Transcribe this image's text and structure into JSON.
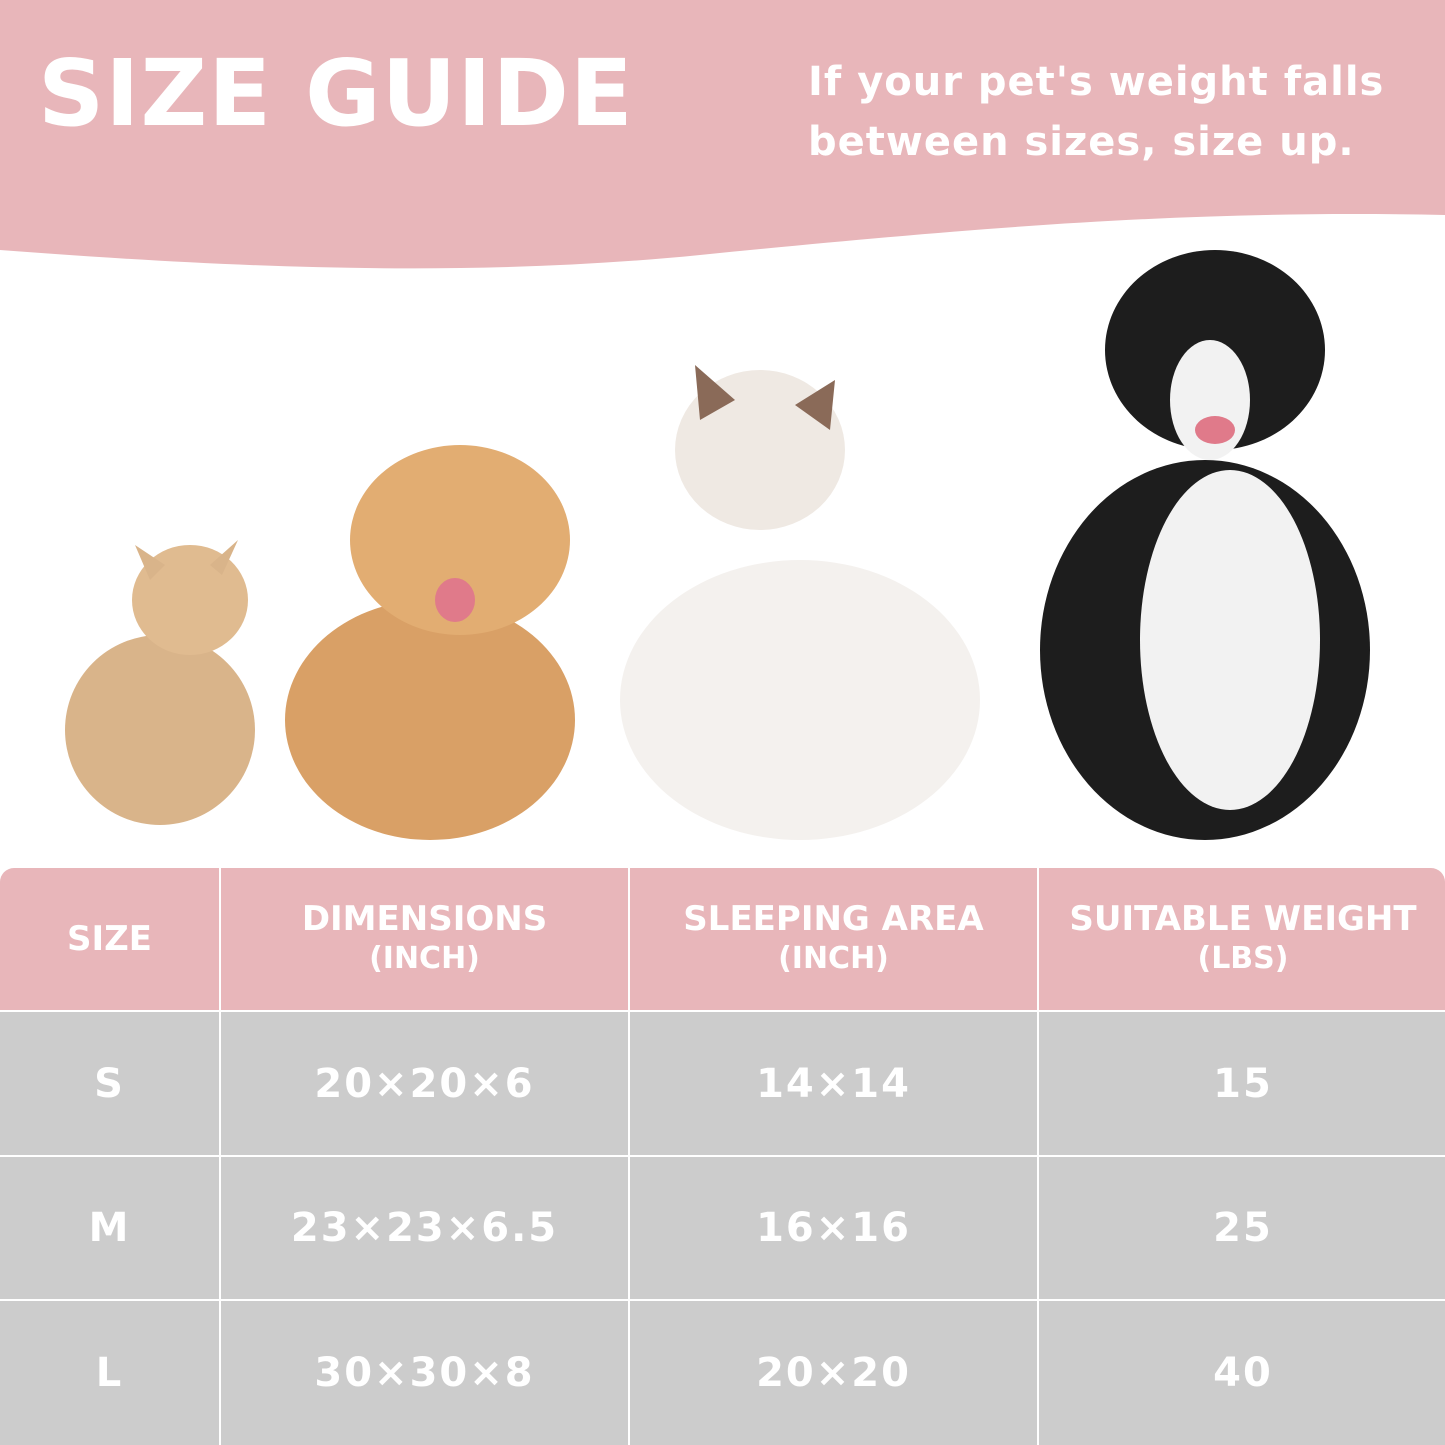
{
  "header": {
    "title": "SIZE GUIDE",
    "note_line1": "If your pet's weight falls",
    "note_line2": "between sizes, size up."
  },
  "colors": {
    "pink": "#e8b6ba",
    "gray": "#cccccc",
    "text": "#ffffff"
  },
  "pets": [
    "small-cat",
    "puppy",
    "ragdoll-cat",
    "border-collie"
  ],
  "table": {
    "headers": [
      {
        "label": "SIZE",
        "unit": ""
      },
      {
        "label": "DIMENSIONS",
        "unit": "(INCH)"
      },
      {
        "label": "SLEEPING AREA",
        "unit": "(INCH)"
      },
      {
        "label": "SUITABLE WEIGHT",
        "unit": "(LBS)"
      }
    ],
    "rows": [
      [
        "S",
        "20×20×6",
        "14×14",
        "15"
      ],
      [
        "M",
        "23×23×6.5",
        "16×16",
        "25"
      ],
      [
        "L",
        "30×30×8",
        "20×20",
        "40"
      ]
    ]
  }
}
